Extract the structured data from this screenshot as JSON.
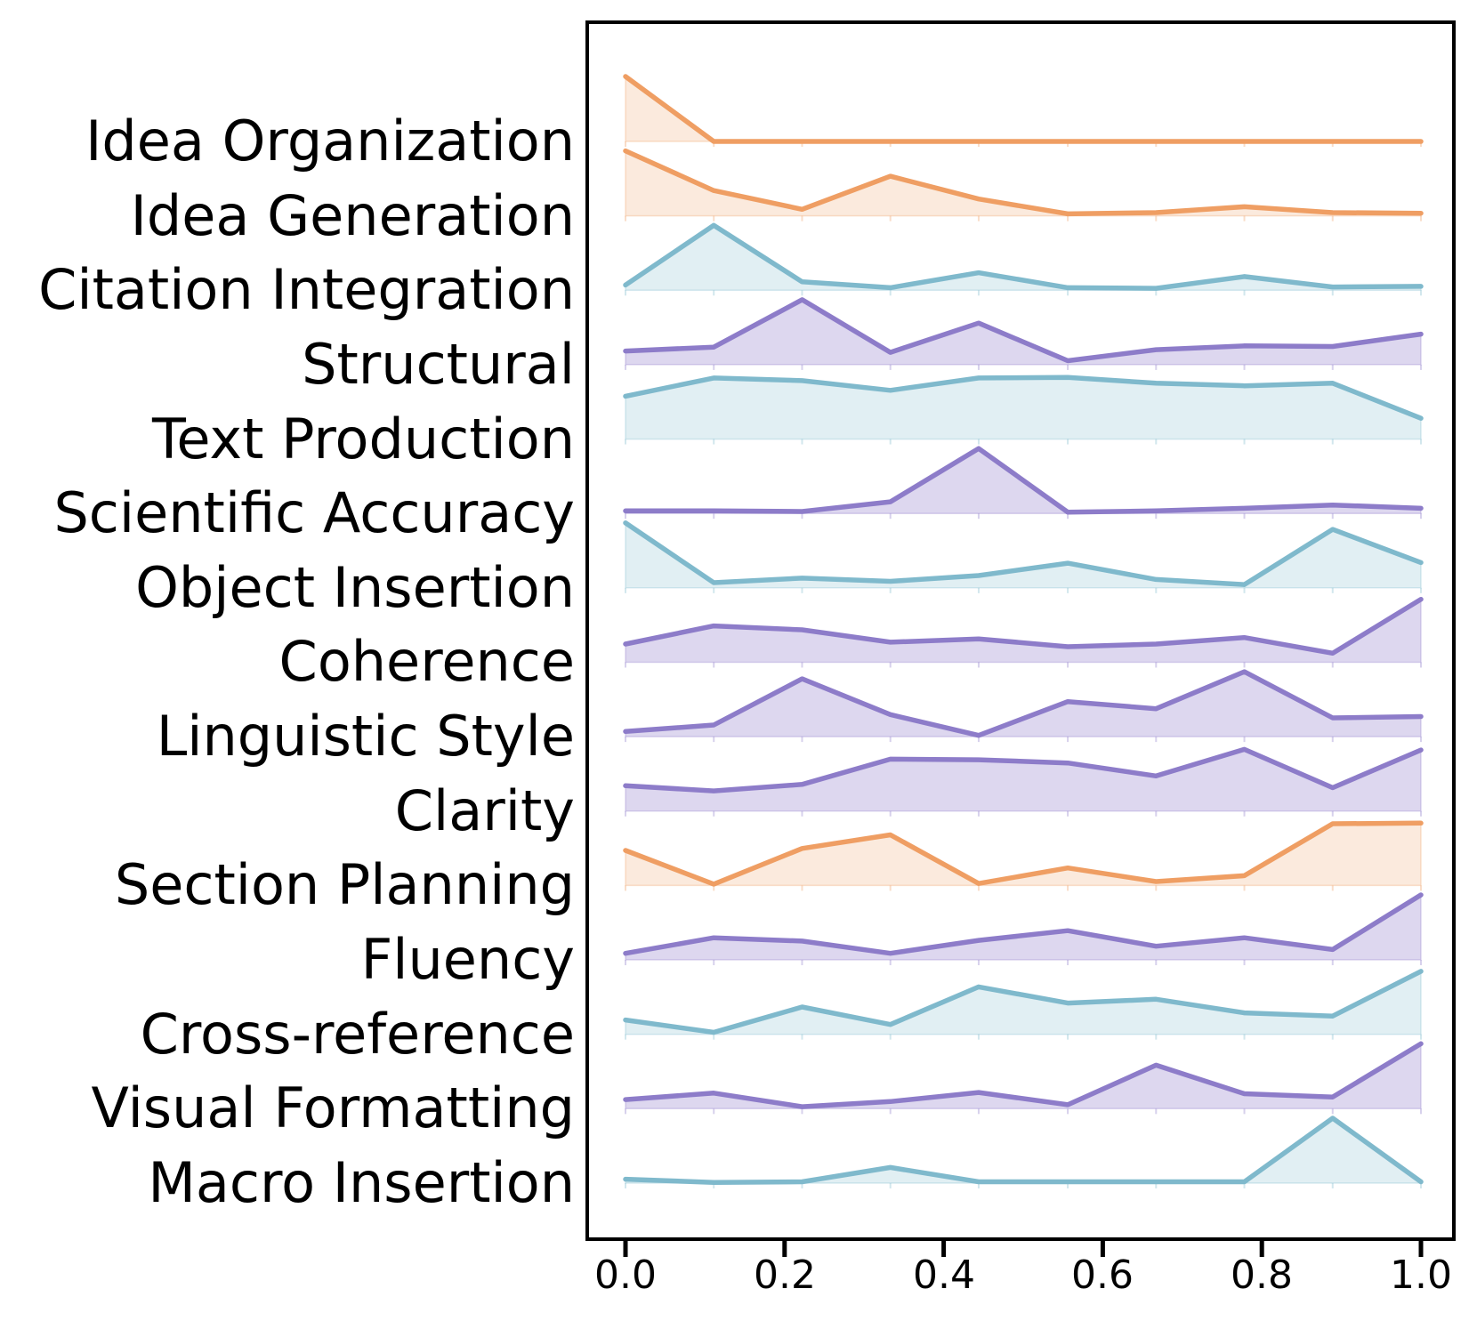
{
  "chart_data": {
    "type": "area",
    "variant": "ridgeline",
    "title": "",
    "xlabel": "",
    "ylabel": "",
    "xlim": [
      0,
      1
    ],
    "grid": false,
    "legend": false,
    "x": [
      0,
      0.111,
      0.222,
      0.333,
      0.444,
      0.556,
      0.667,
      0.778,
      0.889,
      1.0
    ],
    "x_tick_values": [
      0,
      0.2,
      0.4,
      0.6,
      0.8,
      1.0
    ],
    "x_tick_labels": [
      "0.0",
      "0.2",
      "0.4",
      "0.6",
      "0.8",
      "1.0"
    ],
    "colors": {
      "orange": {
        "line": "#EF9E63",
        "fill": "rgba(239,158,99,0.22)"
      },
      "teal": {
        "line": "#7FB9CC",
        "fill": "rgba(127,185,204,0.23)"
      },
      "purple": {
        "line": "#8D7CC9",
        "fill": "rgba(141,124,201,0.30)"
      }
    },
    "series": [
      {
        "label": "Idea Organization",
        "color": "orange",
        "values": [
          1.0,
          0.0,
          0.0,
          0.0,
          0.0,
          0.0,
          0.0,
          0.0,
          0.0,
          0.0
        ]
      },
      {
        "label": "Idea Generation",
        "color": "orange",
        "values": [
          1.0,
          0.39,
          0.1,
          0.61,
          0.26,
          0.03,
          0.05,
          0.14,
          0.05,
          0.04
        ]
      },
      {
        "label": "Citation Integration",
        "color": "teal",
        "values": [
          0.08,
          1.0,
          0.13,
          0.04,
          0.27,
          0.04,
          0.03,
          0.21,
          0.05,
          0.06
        ]
      },
      {
        "label": "Structural",
        "color": "purple",
        "values": [
          0.21,
          0.27,
          1.0,
          0.19,
          0.64,
          0.06,
          0.23,
          0.29,
          0.28,
          0.47
        ]
      },
      {
        "label": "Text Production",
        "color": "teal",
        "values": [
          0.66,
          0.94,
          0.9,
          0.75,
          0.94,
          0.95,
          0.86,
          0.82,
          0.86,
          0.32
        ]
      },
      {
        "label": "Scientific Accuracy",
        "color": "purple",
        "values": [
          0.04,
          0.04,
          0.03,
          0.18,
          1.0,
          0.02,
          0.04,
          0.08,
          0.13,
          0.08
        ]
      },
      {
        "label": "Object Insertion",
        "color": "teal",
        "values": [
          1.0,
          0.08,
          0.15,
          0.1,
          0.19,
          0.38,
          0.13,
          0.05,
          0.9,
          0.39
        ]
      },
      {
        "label": "Coherence",
        "color": "purple",
        "values": [
          0.28,
          0.56,
          0.5,
          0.31,
          0.36,
          0.24,
          0.28,
          0.38,
          0.14,
          0.97
        ]
      },
      {
        "label": "Linguistic Style",
        "color": "purple",
        "values": [
          0.08,
          0.18,
          0.89,
          0.34,
          0.02,
          0.54,
          0.43,
          1.0,
          0.29,
          0.31
        ]
      },
      {
        "label": "Clarity",
        "color": "purple",
        "values": [
          0.39,
          0.31,
          0.41,
          0.8,
          0.79,
          0.74,
          0.54,
          0.95,
          0.36,
          0.94
        ]
      },
      {
        "label": "Section Planning",
        "color": "orange",
        "values": [
          0.54,
          0.02,
          0.57,
          0.78,
          0.03,
          0.27,
          0.06,
          0.15,
          0.95,
          0.96
        ]
      },
      {
        "label": "Fluency",
        "color": "purple",
        "values": [
          0.1,
          0.34,
          0.29,
          0.1,
          0.3,
          0.45,
          0.21,
          0.34,
          0.16,
          1.0
        ]
      },
      {
        "label": "Cross-reference",
        "color": "teal",
        "values": [
          0.22,
          0.03,
          0.42,
          0.15,
          0.73,
          0.48,
          0.54,
          0.33,
          0.28,
          0.97
        ]
      },
      {
        "label": "Visual Formatting",
        "color": "purple",
        "values": [
          0.14,
          0.24,
          0.03,
          0.11,
          0.25,
          0.06,
          0.67,
          0.23,
          0.18,
          1.0
        ]
      },
      {
        "label": "Macro Insertion",
        "color": "teal",
        "values": [
          0.06,
          0.01,
          0.02,
          0.24,
          0.02,
          0.02,
          0.02,
          0.02,
          1.0,
          0.02
        ]
      }
    ]
  }
}
